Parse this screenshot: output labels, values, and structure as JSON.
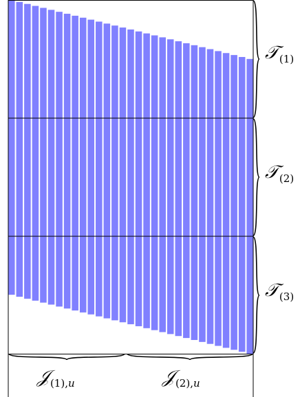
{
  "colors": {
    "bar": "#8080ff",
    "line": "#000000",
    "background": "#ffffff"
  },
  "row_labels": [
    {
      "symbol": "𝒯",
      "subscript": "(1)"
    },
    {
      "symbol": "𝒯",
      "subscript": "(2)"
    },
    {
      "symbol": "𝒯",
      "subscript": "(3)"
    }
  ],
  "column_labels": [
    {
      "symbol": "𝒥",
      "subscript_index": "(1),",
      "subscript_var": "u"
    },
    {
      "symbol": "𝒥",
      "subscript_index": "(2),",
      "subscript_var": "u"
    }
  ],
  "bars": {
    "count": 31,
    "span_rows": 2.5
  }
}
